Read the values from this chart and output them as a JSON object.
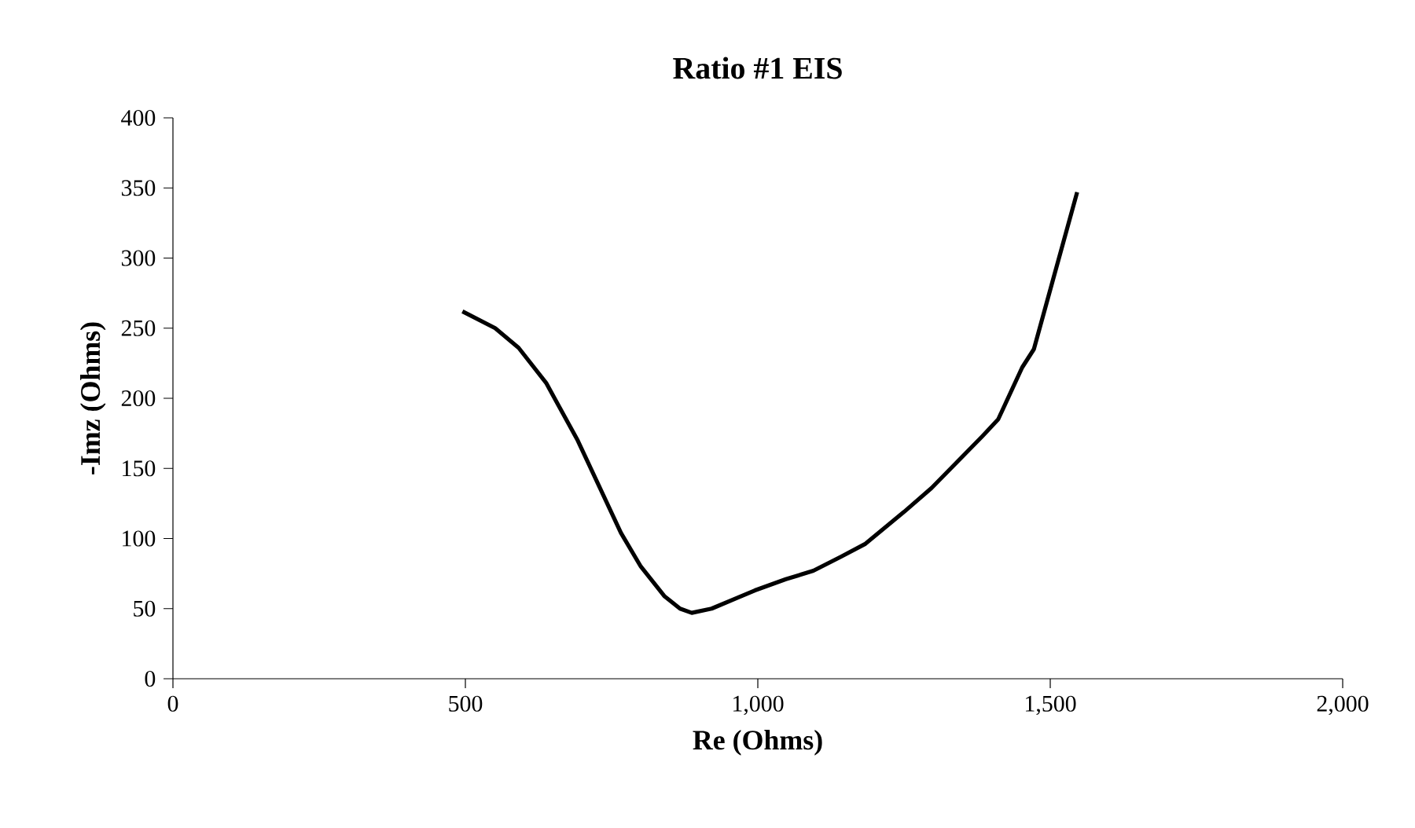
{
  "chart_data": {
    "type": "line",
    "title": "Ratio #1 EIS",
    "xlabel": "Re (Ohms)",
    "ylabel": "-Imz (Ohms)",
    "x": [
      495,
      551,
      591,
      638,
      692,
      766,
      800,
      840,
      867,
      887,
      921,
      995,
      1048,
      1095,
      1142,
      1183,
      1250,
      1297,
      1384,
      1411,
      1452,
      1472,
      1505,
      1546
    ],
    "values": [
      262,
      250,
      236,
      211,
      170,
      104,
      80,
      59,
      50,
      47,
      50,
      63,
      71,
      77,
      87,
      96,
      119,
      136,
      173,
      185,
      222,
      235,
      285,
      347
    ],
    "color": "#000000",
    "xlim": [
      0,
      2000
    ],
    "ylim": [
      0,
      400
    ],
    "xticks": [
      0,
      {
        "value": 500,
        "label": "500"
      },
      {
        "value": 1000,
        "label": "1,000"
      },
      {
        "value": 1500,
        "label": "1,500"
      },
      {
        "value": 2000,
        "label": "2,000"
      }
    ],
    "yticks": [
      0,
      50,
      100,
      150,
      200,
      250,
      300,
      350,
      400
    ],
    "grid": false,
    "marker": "none",
    "line_style": "solid"
  }
}
